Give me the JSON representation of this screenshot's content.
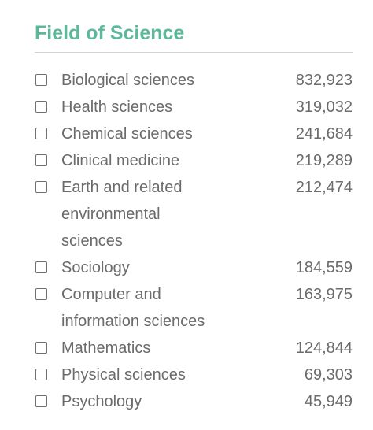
{
  "facet": {
    "title": "Field of Science",
    "items": [
      {
        "label": "Biological sciences",
        "count": "832,923",
        "checked": false
      },
      {
        "label": "Health sciences",
        "count": "319,032",
        "checked": false
      },
      {
        "label": "Chemical sciences",
        "count": "241,684",
        "checked": false
      },
      {
        "label": "Clinical medicine",
        "count": "219,289",
        "checked": false
      },
      {
        "label": "Earth and related environmental sciences",
        "count": "212,474",
        "checked": false
      },
      {
        "label": "Sociology",
        "count": "184,559",
        "checked": false
      },
      {
        "label": "Computer and information sciences",
        "count": "163,975",
        "checked": false
      },
      {
        "label": "Mathematics",
        "count": "124,844",
        "checked": false
      },
      {
        "label": "Physical sciences",
        "count": "69,303",
        "checked": false
      },
      {
        "label": "Psychology",
        "count": "45,949",
        "checked": false
      }
    ]
  },
  "colors": {
    "title": "#5bb89a",
    "text": "#6b6b6b",
    "checkbox_border": "#6f6f6f",
    "divider": "#d3d3d3"
  }
}
